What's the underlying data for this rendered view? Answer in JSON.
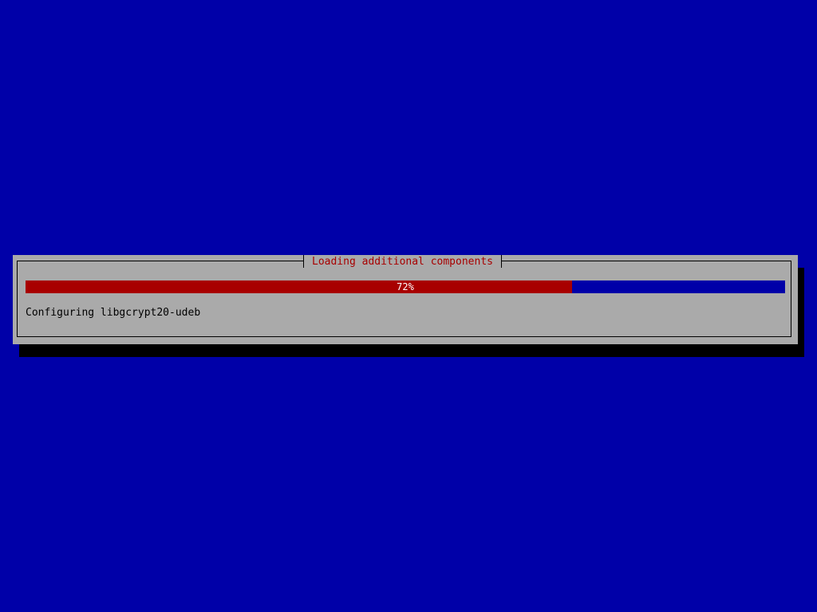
{
  "dialog": {
    "title": "Loading additional components",
    "progress": {
      "percent": 72,
      "label": "72%"
    },
    "status": "Configuring libgcrypt20-udeb"
  },
  "colors": {
    "background": "#0000a8",
    "dialog": "#aaaaaa",
    "progress_fill": "#a80000",
    "title": "#a80000"
  }
}
